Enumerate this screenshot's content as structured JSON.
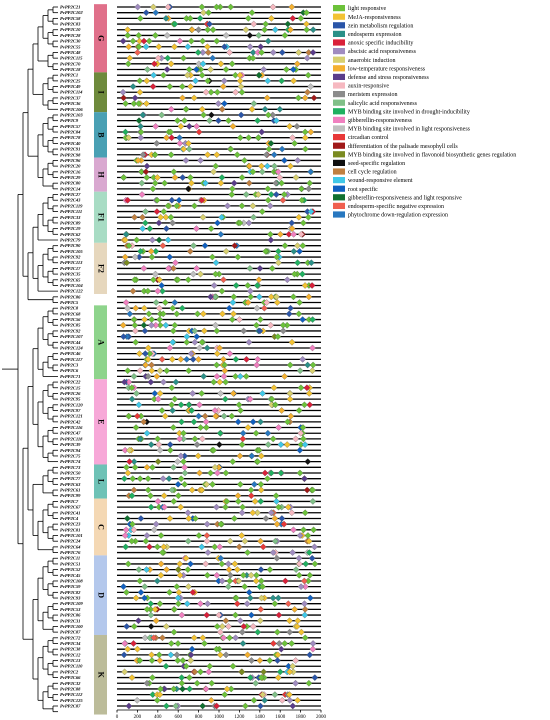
{
  "genes": [
    "PvPP2C21",
    "PvPP2C102",
    "PvPP2C58",
    "PvPP2C83",
    "PvPP2C10",
    "PvPP2C28",
    "PvPP2C30",
    "PvPP2C55",
    "PvPP2C48",
    "PvPP2C115",
    "PvPP2C70",
    "PvPP2C18",
    "PvPP2C1",
    "PvPP2C25",
    "PvPP2C49",
    "PvPP2C114",
    "PvPP2C37",
    "PvPP2C36",
    "PvPP2C106",
    "PvPP2C103",
    "PvPP2C9",
    "PvPP2C57",
    "PvPP2C84",
    "PvPP2C78",
    "PvPP2C40",
    "PvPP2C91",
    "PvPP2C98",
    "PvPP2C96",
    "PvPP2C20",
    "PvPP2C16",
    "PvPP2C29",
    "PvPP2C80",
    "PvPP2C14",
    "PvPP2C27",
    "PvPP2C43",
    "PvPP2C119",
    "PvPP2C111",
    "PvPP2C33",
    "PvPP2C89",
    "PvPP2C19",
    "PvPP2C62",
    "PvPP2C79",
    "PvPP2C90",
    "PvPP2C105",
    "PvPP2C92",
    "PvPP2C113",
    "PvPP2C17",
    "PvPP2C35",
    "PvPP2C65",
    "PvPP2C104",
    "PvPP2C122",
    "PvPP2C86",
    "PvPP2C5",
    "PvPP2C8",
    "PvPP2C68",
    "PvPP2C56",
    "PvPP2C85",
    "PvPP2C92",
    "PvPP2C107",
    "PvPP2C44",
    "PvPP2C124",
    "PvPP2C46",
    "PvPP2C117",
    "PvPP2C3",
    "PvPP2C6",
    "PvPP2C71",
    "PvPP2C22",
    "PvPP2C15",
    "PvPP2C26",
    "PvPP2C95",
    "PvPP2C120",
    "PvPP2C97",
    "PvPP2C121",
    "PvPP2C42",
    "PvPP2C116",
    "PvPP2C47",
    "PvPP2C118",
    "PvPP2C39",
    "PvPP2C94",
    "PvPP2C75",
    "PvPP2C74",
    "PvPP2C73",
    "PvPP2C50",
    "PvPP2C77",
    "PvPP2C63",
    "PvPP2C61",
    "PvPP2C99",
    "PvPP2C7",
    "PvPP2C67",
    "PvPP2C41",
    "PvPP2C4",
    "PvPP2C23",
    "PvPP2C81",
    "PvPP2C101",
    "PvPP2C24",
    "PvPP2C64",
    "PvPP2C76",
    "PvPP2C11",
    "PvPP2C51",
    "PvPP2C52",
    "PvPP2C45",
    "PvPP2C108",
    "PvPP2C59",
    "PvPP2C82",
    "PvPP2C93",
    "PvPP2C109",
    "PvPP2C53",
    "PvPP2C86",
    "PvPP2C31",
    "PvPP2C100",
    "PvPP2C87",
    "PvPP2C72",
    "PvPP2C34",
    "PvPP2C38",
    "PvPP2C12",
    "PvPP2C13",
    "PvPP2C110",
    "PvPP2C2",
    "PvPP2C66",
    "PvPP2C32",
    "PvPP2C88",
    "PvPP2C112",
    "PvPP2C125",
    "PvPP2C87"
  ],
  "groups": [
    {
      "label": "G",
      "color": "#e0708a",
      "start": 0,
      "end": 11
    },
    {
      "label": "I",
      "color": "#6e8a3c",
      "start": 12,
      "end": 18
    },
    {
      "label": "B",
      "color": "#4aa0b4",
      "start": 19,
      "end": 26
    },
    {
      "label": "H",
      "color": "#d9a8d0",
      "start": 27,
      "end": 32
    },
    {
      "label": "F1",
      "color": "#a8dcc4",
      "start": 33,
      "end": 41
    },
    {
      "label": "F2",
      "color": "#e6d7bd",
      "start": 42,
      "end": 50
    },
    {
      "label": "A",
      "color": "#8ed48c",
      "start": 53,
      "end": 65
    },
    {
      "label": "E",
      "color": "#f7a8d8",
      "start": 66,
      "end": 80
    },
    {
      "label": "L",
      "color": "#6ec2b6",
      "start": 81,
      "end": 86
    },
    {
      "label": "C",
      "color": "#f4d8b4",
      "start": 87,
      "end": 96
    },
    {
      "label": "D",
      "color": "#b4c8ec",
      "start": 97,
      "end": 110
    },
    {
      "label": "K",
      "color": "#bcbc9a",
      "start": 111,
      "end": 124
    }
  ],
  "legend": [
    {
      "label": "light responsive",
      "color": "#6cc23a"
    },
    {
      "label": "MeJA-responsiveness",
      "color": "#f2c233"
    },
    {
      "label": "zein metabolism regulation",
      "color": "#2a55a8"
    },
    {
      "label": "endosperm expression",
      "color": "#2a9088"
    },
    {
      "label": "anoxic specific inducibility",
      "color": "#d9203a"
    },
    {
      "label": "abscisic acid responsiveness",
      "color": "#a08cc0"
    },
    {
      "label": "anaerobic induction",
      "color": "#d8d070"
    },
    {
      "label": "low-temperature responsiveness",
      "color": "#f4b030"
    },
    {
      "label": "defense and stress responsiveness",
      "color": "#5a3c8a"
    },
    {
      "label": "auxin-responsive",
      "color": "#f6b8c0"
    },
    {
      "label": "meristem expression",
      "color": "#8c8c8c"
    },
    {
      "label": "salicylic acid responsiveness",
      "color": "#80c088"
    },
    {
      "label": "MYB binding site involved in drought-inducibility",
      "color": "#20b060"
    },
    {
      "label": "gibberellin-responsiveness",
      "color": "#f080c0"
    },
    {
      "label": "MYB binding site involved in light responsiveness",
      "color": "#c0c0c0"
    },
    {
      "label": "circadian control",
      "color": "#e83838"
    },
    {
      "label": "differentiation of the palisade mesophyll cells",
      "color": "#a01818"
    },
    {
      "label": "MYB binding site involved in flavonoid biosynthetic genes regulation",
      "color": "#7a8a20"
    },
    {
      "label": "seed-specific regulation",
      "color": "#101010"
    },
    {
      "label": "cell cycle regulation",
      "color": "#c08040"
    },
    {
      "label": "wound-responsive element",
      "color": "#40c8e8"
    },
    {
      "label": "root specific",
      "color": "#1060c0"
    },
    {
      "label": "gibberellin-responsiveness and light responsive",
      "color": "#107030"
    },
    {
      "label": "endosperm-specific negative expression",
      "color": "#f06050"
    },
    {
      "label": "phytochrome down-regulation expression",
      "color": "#2878c0"
    }
  ],
  "axis": {
    "ticks": [
      "0",
      "200",
      "400",
      "600",
      "800",
      "1000",
      "1200",
      "1400",
      "1600",
      "1800",
      "2000"
    ],
    "min": 0,
    "max": 2000
  }
}
